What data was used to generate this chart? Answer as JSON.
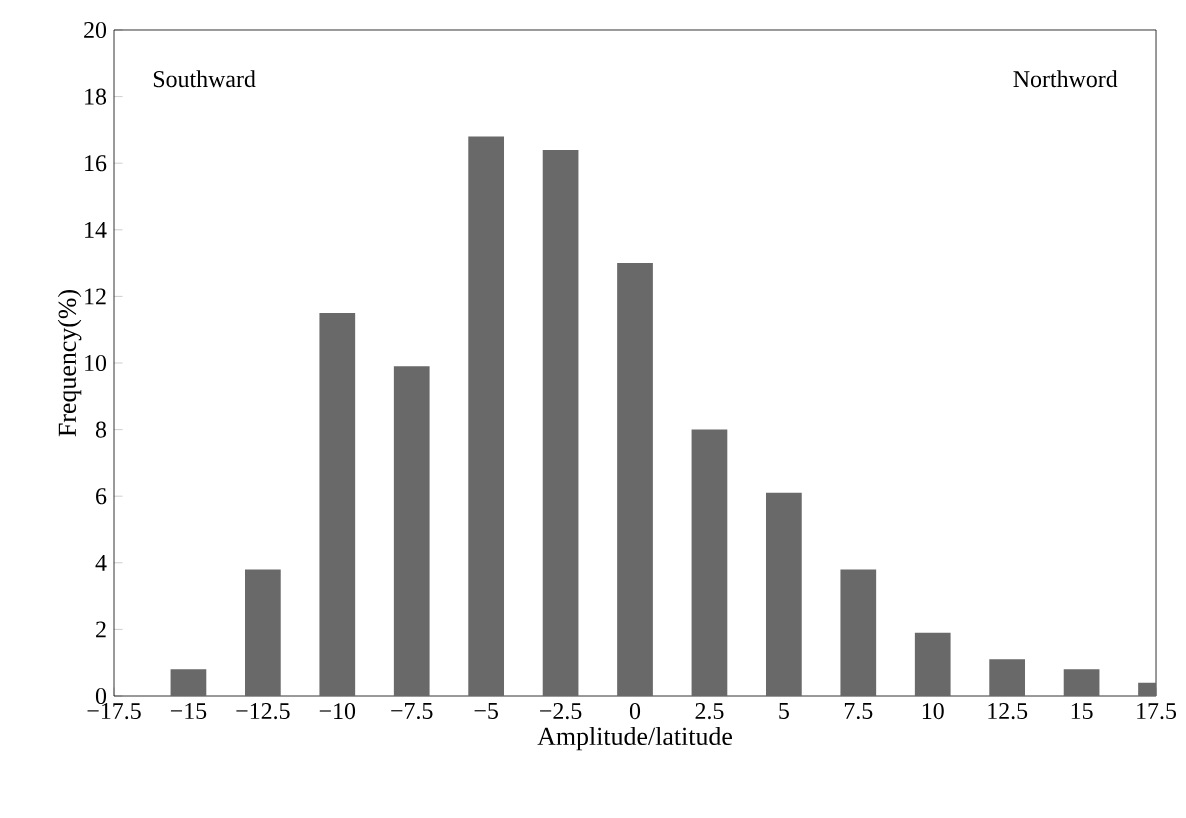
{
  "chart_data": {
    "type": "bar",
    "xlabel": "Amplitude/latitude",
    "ylabel": "Frequency(%)",
    "annotations": [
      "Southward",
      "Northword"
    ],
    "x": [
      -15,
      -12.5,
      -10,
      -7.5,
      -5,
      -2.5,
      0,
      2.5,
      5,
      7.5,
      10,
      12.5,
      15,
      17.5
    ],
    "values": [
      0.8,
      3.8,
      11.5,
      9.9,
      16.8,
      16.4,
      13,
      8,
      6.1,
      3.8,
      1.9,
      1.1,
      0.8,
      0.4
    ],
    "color": "#696969",
    "xlim": [
      -17.5,
      17.5
    ],
    "xticks": [
      {
        "value": -17.5,
        "label": "−17.5"
      },
      {
        "value": -15,
        "label": "−15"
      },
      {
        "value": -12.5,
        "label": "−12.5"
      },
      {
        "value": -10,
        "label": "−10"
      },
      {
        "value": -7.5,
        "label": "−7.5"
      },
      {
        "value": -5,
        "label": "−5"
      },
      {
        "value": -2.5,
        "label": "−2.5"
      },
      0,
      2.5,
      5,
      7.5,
      10,
      12.5,
      15,
      17.5
    ],
    "ylim": [
      0,
      20
    ],
    "yticks": [
      0,
      2,
      4,
      6,
      8,
      10,
      12,
      14,
      16,
      18,
      20
    ],
    "grid": false
  }
}
